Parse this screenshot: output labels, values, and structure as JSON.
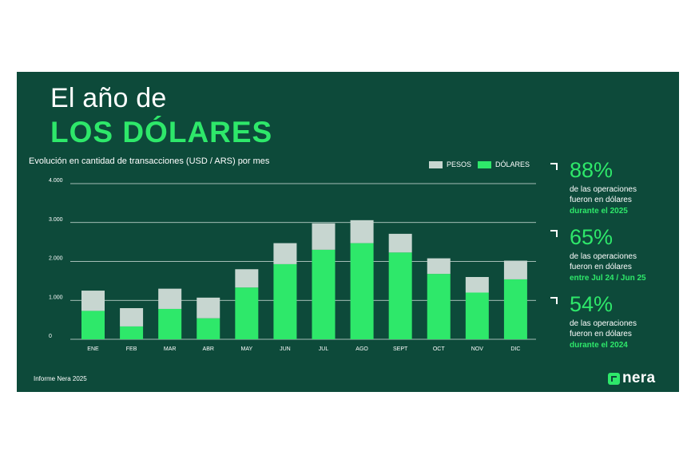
{
  "header": {
    "title_line1": "El año de",
    "title_line2": "LOS DÓLARES",
    "subtitle": "Evolución en cantidad de transacciones (USD / ARS) por mes"
  },
  "legend": {
    "pesos": "PESOS",
    "dolares": "DÓLARES"
  },
  "colors": {
    "background": "#0d4a3a",
    "dolares": "#2ee86a",
    "pesos": "#c7d6d0",
    "text": "#ffffff"
  },
  "chart_data": {
    "type": "bar",
    "stacked": true,
    "title": "Evolución en cantidad de transacciones (USD / ARS) por mes",
    "xlabel": "",
    "ylabel": "",
    "categories": [
      "ENE",
      "FEB",
      "MAR",
      "ABR",
      "MAY",
      "JUN",
      "JUL",
      "AGO",
      "SEPT",
      "OCT",
      "NOV",
      "DIC"
    ],
    "series": [
      {
        "name": "DÓLARES",
        "values": [
          730,
          330,
          780,
          540,
          1330,
          1930,
          2300,
          2470,
          2230,
          1680,
          1200,
          1540
        ]
      },
      {
        "name": "PESOS",
        "values": [
          520,
          470,
          520,
          530,
          470,
          540,
          680,
          590,
          480,
          400,
          400,
          480
        ]
      }
    ],
    "y_ticks": [
      "0",
      "1.000",
      "2.000",
      "3.000",
      "4.000"
    ],
    "y_tick_values": [
      0,
      1000,
      2000,
      3000,
      4000
    ],
    "ylim": [
      0,
      4000
    ],
    "grid": true,
    "legend_position": "top-right"
  },
  "stats": [
    {
      "pct": "88%",
      "line1": "de las operaciones",
      "line2": "fueron en dólares",
      "line3": "durante el 2025"
    },
    {
      "pct": "65%",
      "line1": "de las operaciones",
      "line2": "fueron en dólares",
      "line3": "entre Jul 24 / Jun 25"
    },
    {
      "pct": "54%",
      "line1": "de las operaciones",
      "line2": "fueron en dólares",
      "line3": "durante el 2024"
    }
  ],
  "footer": {
    "text": "Informe Nera 2025"
  },
  "logo": {
    "text": "nera"
  }
}
